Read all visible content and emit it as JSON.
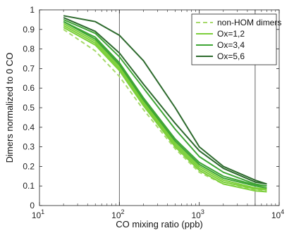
{
  "chart_data": {
    "type": "line",
    "xlabel": "CO mixing ratio (ppb)",
    "ylabel": "Dimers normalized to 0 CO",
    "x_scale": "log",
    "xlim": [
      10,
      10000
    ],
    "ylim": [
      0,
      1
    ],
    "x_ticks": [
      {
        "value": 10,
        "base": "10",
        "exp": "1"
      },
      {
        "value": 100,
        "base": "10",
        "exp": "2"
      },
      {
        "value": 1000,
        "base": "10",
        "exp": "3"
      },
      {
        "value": 10000,
        "base": "10",
        "exp": "4"
      }
    ],
    "y_ticks": [
      "0",
      "0.1",
      "0.2",
      "0.3",
      "0.4",
      "0.5",
      "0.6",
      "0.7",
      "0.8",
      "0.9",
      "1"
    ],
    "vertical_lines": [
      100,
      5000
    ],
    "legend_position": "top-right",
    "legend": [
      {
        "label": "non-HOM dimers",
        "style": "dashed",
        "color": "#a6d96a"
      },
      {
        "label": "Ox=1,2",
        "style": "solid",
        "color": "#7ccf3a"
      },
      {
        "label": "Ox=3,4",
        "style": "solid",
        "color": "#3fa535"
      },
      {
        "label": "Ox=5,6",
        "style": "solid",
        "color": "#2d6a2d"
      }
    ],
    "x": [
      20,
      50,
      100,
      200,
      500,
      1000,
      2000,
      5000,
      7000
    ],
    "series": [
      {
        "name": "non-HOM dimers",
        "dashed": true,
        "color": "#a6d96a",
        "values": [
          0.9,
          0.79,
          0.66,
          0.49,
          0.29,
          0.17,
          0.11,
          0.08,
          0.075
        ]
      },
      {
        "name": "Ox=1,2",
        "color": "#7ccf3a",
        "values": [
          0.91,
          0.82,
          0.69,
          0.51,
          0.3,
          0.18,
          0.11,
          0.075,
          0.07
        ]
      },
      {
        "color": "#7ccf3a",
        "values": [
          0.92,
          0.83,
          0.7,
          0.52,
          0.31,
          0.19,
          0.12,
          0.085,
          0.08
        ]
      },
      {
        "color": "#7ccf3a",
        "values": [
          0.93,
          0.84,
          0.71,
          0.53,
          0.32,
          0.2,
          0.13,
          0.09,
          0.085
        ]
      },
      {
        "name": "Ox=3,4",
        "color": "#3fa535",
        "values": [
          0.94,
          0.85,
          0.72,
          0.54,
          0.33,
          0.21,
          0.14,
          0.1,
          0.09
        ]
      },
      {
        "color": "#3fa535",
        "values": [
          0.94,
          0.86,
          0.73,
          0.55,
          0.34,
          0.22,
          0.15,
          0.105,
          0.1
        ]
      },
      {
        "color": "#3fa535",
        "values": [
          0.95,
          0.88,
          0.76,
          0.6,
          0.39,
          0.25,
          0.17,
          0.11,
          0.1
        ]
      },
      {
        "name": "Ox=5,6",
        "color": "#2d6a2d",
        "values": [
          0.96,
          0.89,
          0.78,
          0.62,
          0.42,
          0.28,
          0.19,
          0.12,
          0.11
        ]
      },
      {
        "color": "#2d6a2d",
        "values": [
          0.97,
          0.94,
          0.87,
          0.74,
          0.5,
          0.3,
          0.2,
          0.13,
          0.11
        ]
      }
    ]
  }
}
